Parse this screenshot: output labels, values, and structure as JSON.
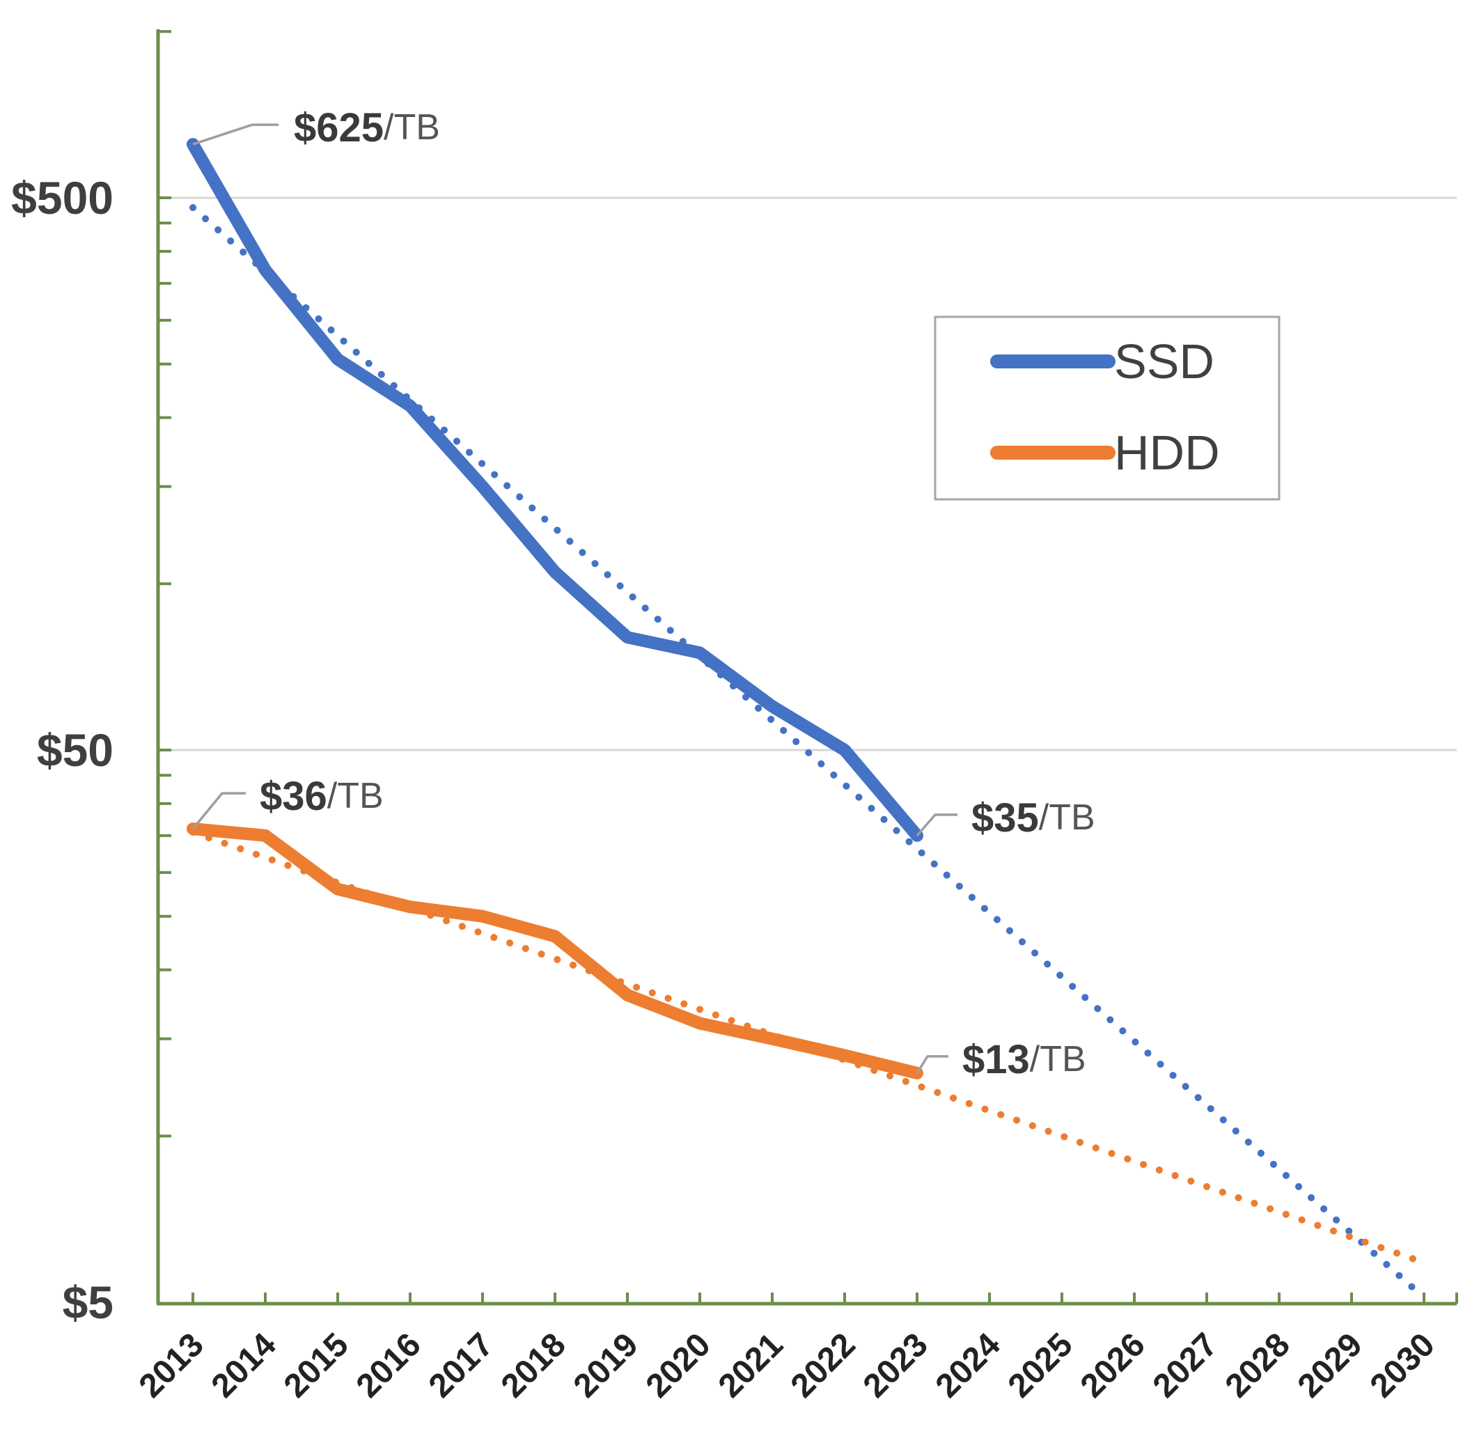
{
  "chart_data": {
    "type": "line",
    "title": "",
    "y_axis": {
      "scale": "log",
      "unit": "$/TB",
      "range": [
        5,
        1000
      ],
      "labeled_ticks": [
        {
          "value": 500,
          "label": "$500"
        },
        {
          "value": 50,
          "label": "$50"
        },
        {
          "value": 5,
          "label": "$5"
        }
      ],
      "minor_tick_values": [
        10,
        15,
        20,
        25,
        30,
        35,
        40,
        45,
        100,
        150,
        200,
        250,
        300,
        350,
        400,
        450,
        1000
      ],
      "gridline_values": [
        500,
        50
      ]
    },
    "x_axis": {
      "years": [
        2013,
        2014,
        2015,
        2016,
        2017,
        2018,
        2019,
        2020,
        2021,
        2022,
        2023,
        2024,
        2025,
        2026,
        2027,
        2028,
        2029,
        2030
      ]
    },
    "series": [
      {
        "name": "SSD",
        "color": "#4472C4",
        "line_style": "solid",
        "years": [
          2013,
          2014,
          2015,
          2016,
          2017,
          2018,
          2019,
          2020,
          2021,
          2022,
          2023
        ],
        "values": [
          625,
          370,
          255,
          210,
          150,
          105,
          80,
          75,
          60,
          50,
          35
        ]
      },
      {
        "name": "HDD",
        "color": "#ED7D31",
        "line_style": "solid",
        "years": [
          2013,
          2014,
          2015,
          2016,
          2017,
          2018,
          2019,
          2020,
          2021,
          2022,
          2023
        ],
        "values": [
          36,
          35,
          28,
          26,
          25,
          23,
          18,
          16,
          15,
          14,
          13
        ]
      }
    ],
    "trendlines": [
      {
        "name": "SSD trend",
        "color": "#4472C4",
        "style": "dotted",
        "points": [
          [
            2013,
            480
          ],
          [
            2030,
            5.1
          ]
        ]
      },
      {
        "name": "HDD trend",
        "color": "#ED7D31",
        "style": "dotted",
        "points": [
          [
            2013,
            35.5
          ],
          [
            2030,
            5.9
          ]
        ]
      }
    ],
    "annotations": [
      {
        "id": "ssd-start",
        "year": 2013,
        "value": 625,
        "value_text": "$625",
        "unit_text": "/TB"
      },
      {
        "id": "hdd-start",
        "year": 2013,
        "value": 36,
        "value_text": "$36",
        "unit_text": "/TB"
      },
      {
        "id": "ssd-end",
        "year": 2023,
        "value": 35,
        "value_text": "$35",
        "unit_text": "/TB"
      },
      {
        "id": "hdd-end",
        "year": 2023,
        "value": 13,
        "value_text": "$13",
        "unit_text": "/TB"
      }
    ],
    "legend": {
      "position": "upper-right",
      "entries": [
        "SSD",
        "HDD"
      ]
    }
  },
  "colors": {
    "axis": "#6B8E4B",
    "gridline": "#D6D6D6",
    "y_label": "#3F3F3F",
    "x_label": "#222222",
    "annotation_value": "#3A3A3A",
    "annotation_unit": "#555555",
    "callout": "#9E9E9E",
    "legend_border": "#A6A6A6",
    "legend_text": "#404040",
    "background": "#FFFFFF"
  }
}
